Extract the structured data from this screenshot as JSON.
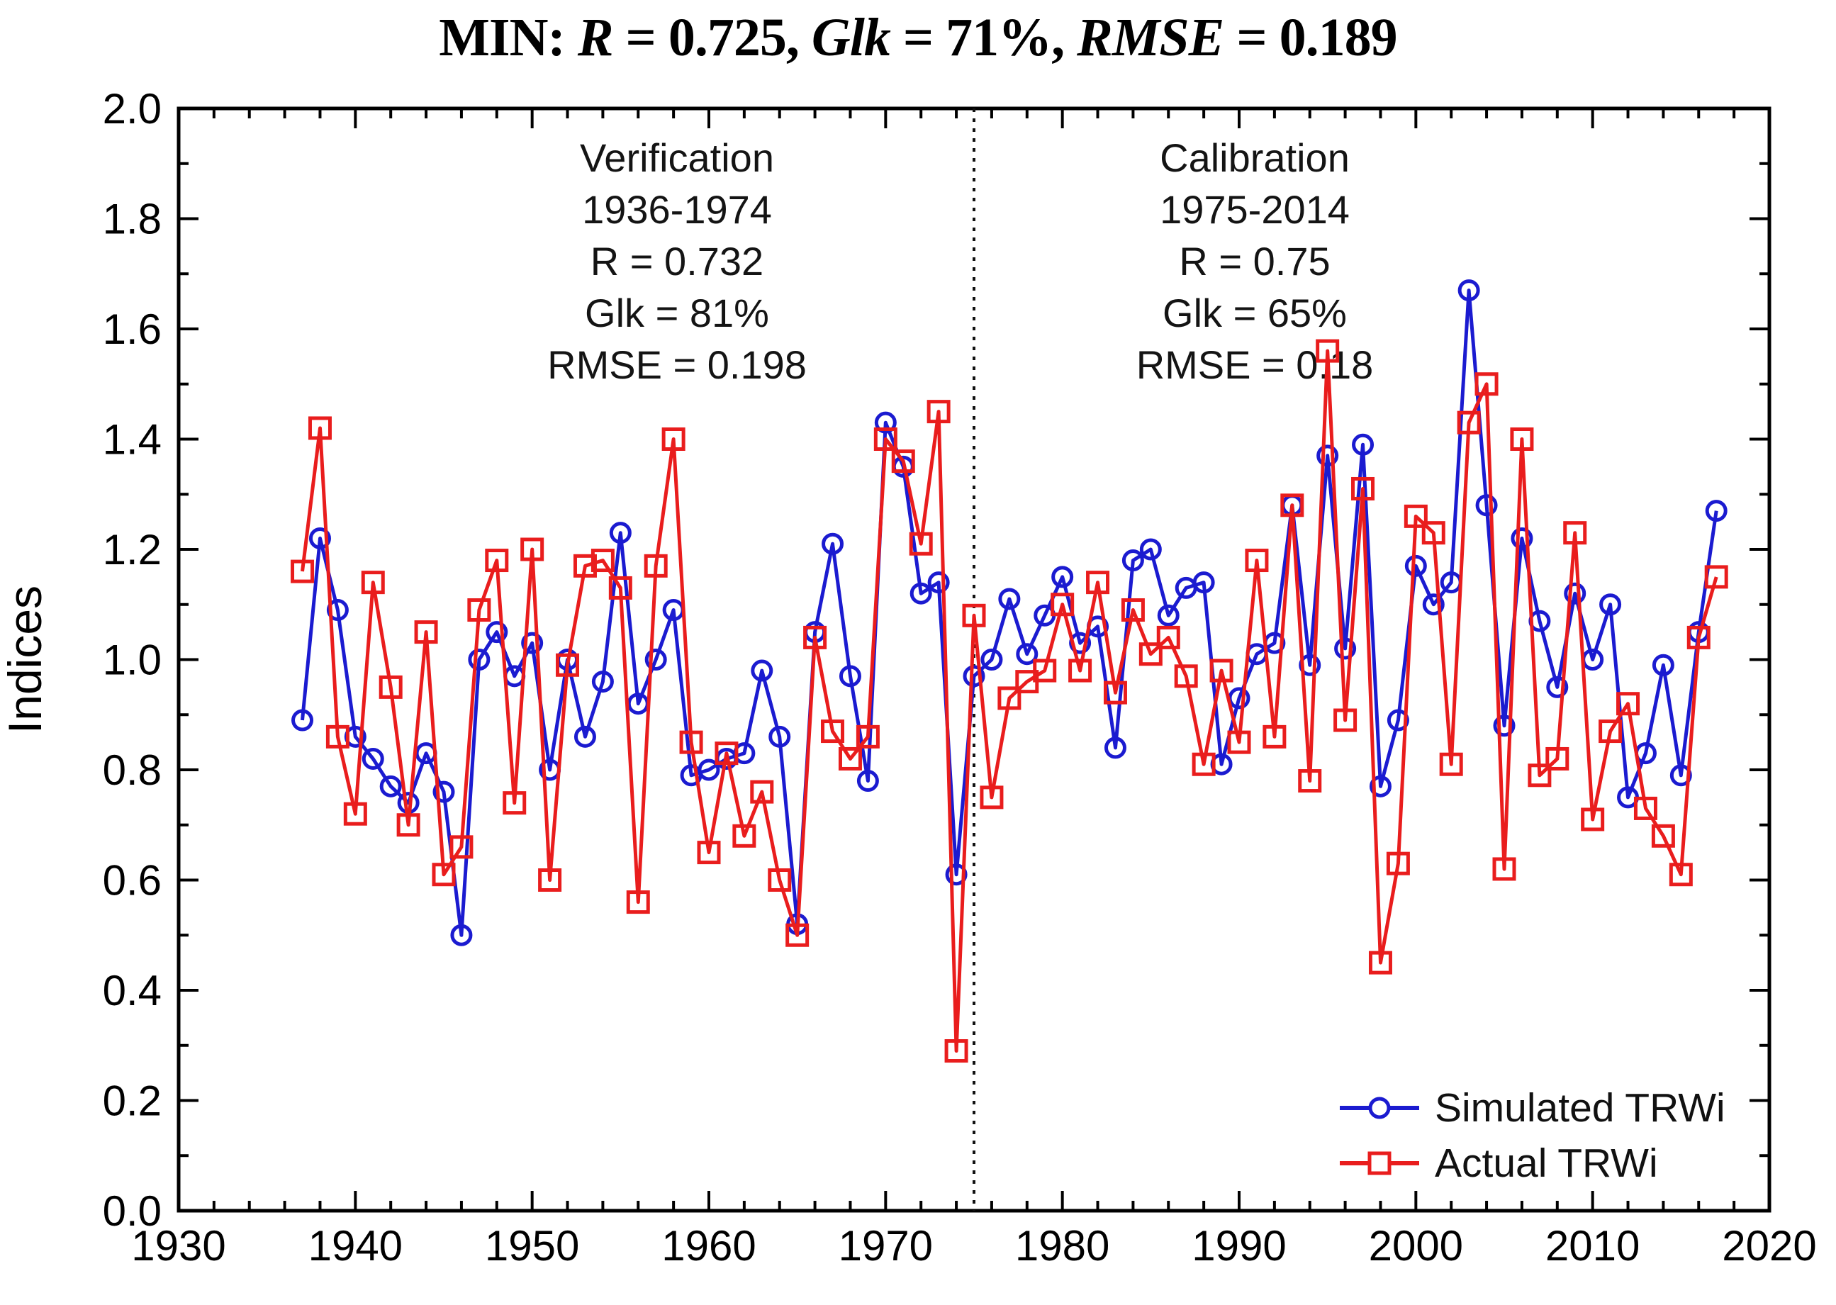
{
  "title": {
    "segments": [
      {
        "text": "MIN: ",
        "italic": false
      },
      {
        "text": "R",
        "italic": true
      },
      {
        "text": " = 0.725, ",
        "italic": false
      },
      {
        "text": "Glk",
        "italic": true
      },
      {
        "text": " = 71%, ",
        "italic": false
      },
      {
        "text": "RMSE",
        "italic": true
      },
      {
        "text": " = 0.189",
        "italic": false
      }
    ],
    "plain": "MIN: R = 0.725, Glk = 71%, RMSE = 0.189"
  },
  "chart_data": {
    "type": "line",
    "title": "MIN: R = 0.725, Glk = 71%, RMSE = 0.189",
    "xlabel": "",
    "ylabel": "Indices",
    "xlim": [
      1930,
      2020
    ],
    "ylim": [
      0.0,
      2.0
    ],
    "x_major_ticks": [
      1930,
      1940,
      1950,
      1960,
      1970,
      1980,
      1990,
      2000,
      2010,
      2020
    ],
    "x_minor_step": 2,
    "y_major_ticks": [
      0.0,
      0.2,
      0.4,
      0.6,
      0.8,
      1.0,
      1.2,
      1.4,
      1.6,
      1.8,
      2.0
    ],
    "y_minor_step": 0.1,
    "grid": false,
    "divider": {
      "x": 1975,
      "style": "dotted",
      "color": "#111111"
    },
    "legend_position": "bottom-right-inside",
    "x": [
      1937,
      1938,
      1939,
      1940,
      1941,
      1942,
      1943,
      1944,
      1945,
      1946,
      1947,
      1948,
      1949,
      1950,
      1951,
      1952,
      1953,
      1954,
      1955,
      1956,
      1957,
      1958,
      1959,
      1960,
      1961,
      1962,
      1963,
      1964,
      1965,
      1966,
      1967,
      1968,
      1969,
      1970,
      1971,
      1972,
      1973,
      1974,
      1975,
      1976,
      1977,
      1978,
      1979,
      1980,
      1981,
      1982,
      1983,
      1984,
      1985,
      1986,
      1987,
      1988,
      1989,
      1990,
      1991,
      1992,
      1993,
      1994,
      1995,
      1996,
      1997,
      1998,
      1999,
      2000,
      2001,
      2002,
      2003,
      2004,
      2005,
      2006,
      2007,
      2008,
      2009,
      2010,
      2011,
      2012,
      2013,
      2014,
      2015,
      2016,
      2017
    ],
    "series": [
      {
        "name": "Simulated TRWi",
        "color": "#1b1bd0",
        "marker": "circle",
        "values": [
          0.89,
          1.22,
          1.09,
          0.86,
          0.82,
          0.77,
          0.74,
          0.83,
          0.76,
          0.5,
          1.0,
          1.05,
          0.97,
          1.03,
          0.8,
          1.0,
          0.86,
          0.96,
          1.23,
          0.92,
          1.0,
          1.09,
          0.79,
          0.8,
          0.82,
          0.83,
          0.98,
          0.86,
          0.52,
          1.05,
          1.21,
          0.97,
          0.78,
          1.43,
          1.35,
          1.12,
          1.14,
          0.61,
          0.97,
          1.0,
          1.11,
          1.01,
          1.08,
          1.15,
          1.03,
          1.06,
          0.84,
          1.18,
          1.2,
          1.08,
          1.13,
          1.14,
          0.81,
          0.93,
          1.01,
          1.03,
          1.28,
          0.99,
          1.37,
          1.02,
          1.39,
          0.77,
          0.89,
          1.17,
          1.1,
          1.14,
          1.67,
          1.28,
          0.88,
          1.22,
          1.07,
          0.95,
          1.12,
          1.0,
          1.1,
          0.75,
          0.83,
          0.99,
          0.79,
          1.05,
          1.27
        ]
      },
      {
        "name": "Actual TRWi",
        "color": "#e91d1d",
        "marker": "square",
        "values": [
          1.16,
          1.42,
          0.86,
          0.72,
          1.14,
          0.95,
          0.7,
          1.05,
          0.61,
          0.66,
          1.09,
          1.18,
          0.74,
          1.2,
          0.6,
          0.99,
          1.17,
          1.18,
          1.13,
          0.56,
          1.17,
          1.4,
          0.85,
          0.65,
          0.83,
          0.68,
          0.76,
          0.6,
          0.5,
          1.04,
          0.87,
          0.82,
          0.86,
          1.4,
          1.36,
          1.21,
          1.45,
          0.29,
          1.08,
          0.75,
          0.93,
          0.96,
          0.98,
          1.1,
          0.98,
          1.14,
          0.94,
          1.09,
          1.01,
          1.04,
          0.97,
          0.81,
          0.98,
          0.85,
          1.18,
          0.86,
          1.28,
          0.78,
          1.56,
          0.89,
          1.31,
          0.45,
          0.63,
          1.26,
          1.23,
          0.81,
          1.43,
          1.5,
          0.62,
          1.4,
          0.79,
          0.82,
          1.23,
          0.71,
          0.87,
          0.92,
          0.73,
          0.68,
          0.61,
          1.04,
          1.15
        ]
      }
    ],
    "annotations": [
      {
        "lines": [
          "Verification",
          "1936-1974",
          "R = 0.732",
          "Glk = 81%",
          "RMSE = 0.198"
        ],
        "cx": 955,
        "top": 186
      },
      {
        "lines": [
          "Calibration",
          "1975-2014",
          "R = 0.75",
          "Glk = 65%",
          "RMSE = 0.18"
        ],
        "cx": 1770,
        "top": 186
      }
    ]
  },
  "legend": {
    "items": [
      {
        "label": "Simulated TRWi",
        "color": "#1b1bd0",
        "marker": "circle"
      },
      {
        "label": "Actual TRWi",
        "color": "#e91d1d",
        "marker": "square"
      }
    ]
  },
  "ylabel": "Indices"
}
